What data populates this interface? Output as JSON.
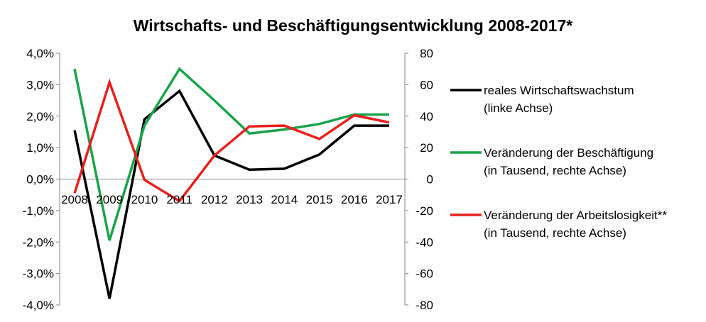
{
  "chart_data": {
    "type": "line",
    "title": "Wirtschafts- und Beschäftigungsentwicklung 2008-2017*",
    "categories": [
      "2008",
      "2009",
      "2010",
      "2011",
      "2012",
      "2013",
      "2014",
      "2015",
      "2016",
      "2017"
    ],
    "left_axis": {
      "ylim": [
        -4.0,
        4.0
      ],
      "ticks": [
        4.0,
        3.0,
        2.0,
        1.0,
        0.0,
        -1.0,
        -2.0,
        -3.0,
        -4.0
      ],
      "tick_labels": [
        "4,0%",
        "3,0%",
        "2,0%",
        "1,0%",
        "0,0%",
        "-1,0%",
        "-2,0%",
        "-3,0%",
        "-4,0%"
      ]
    },
    "right_axis": {
      "ylim": [
        -80,
        80
      ],
      "ticks": [
        80,
        60,
        40,
        20,
        0,
        -20,
        -40,
        -60,
        -80
      ],
      "tick_labels": [
        "80",
        "60",
        "40",
        "20",
        "0",
        "-20",
        "-40",
        "-60",
        "-80"
      ]
    },
    "series": [
      {
        "name": "reales Wirtschaftswachstum",
        "legend_line2": "(linke Achse)",
        "axis": "left",
        "color": "#000000",
        "values": [
          1.55,
          -3.8,
          1.9,
          2.8,
          0.75,
          0.3,
          0.33,
          0.78,
          1.7,
          1.7
        ]
      },
      {
        "name": "Veränderung der Beschäftigung",
        "legend_line2": "(in Tausend, rechte Achse)",
        "axis": "right",
        "color": "#1aa44a",
        "values": [
          70,
          -39,
          34,
          70,
          50,
          29,
          31.5,
          35,
          41,
          41
        ]
      },
      {
        "name": "Veränderung der Arbeitslosigkeit**",
        "legend_line2": "(in Tausend, rechte Achse)",
        "axis": "right",
        "color": "#e8201c",
        "values": [
          -9,
          61.5,
          -0.5,
          -14,
          15,
          33.5,
          34,
          25.5,
          40.5,
          36
        ]
      }
    ]
  }
}
